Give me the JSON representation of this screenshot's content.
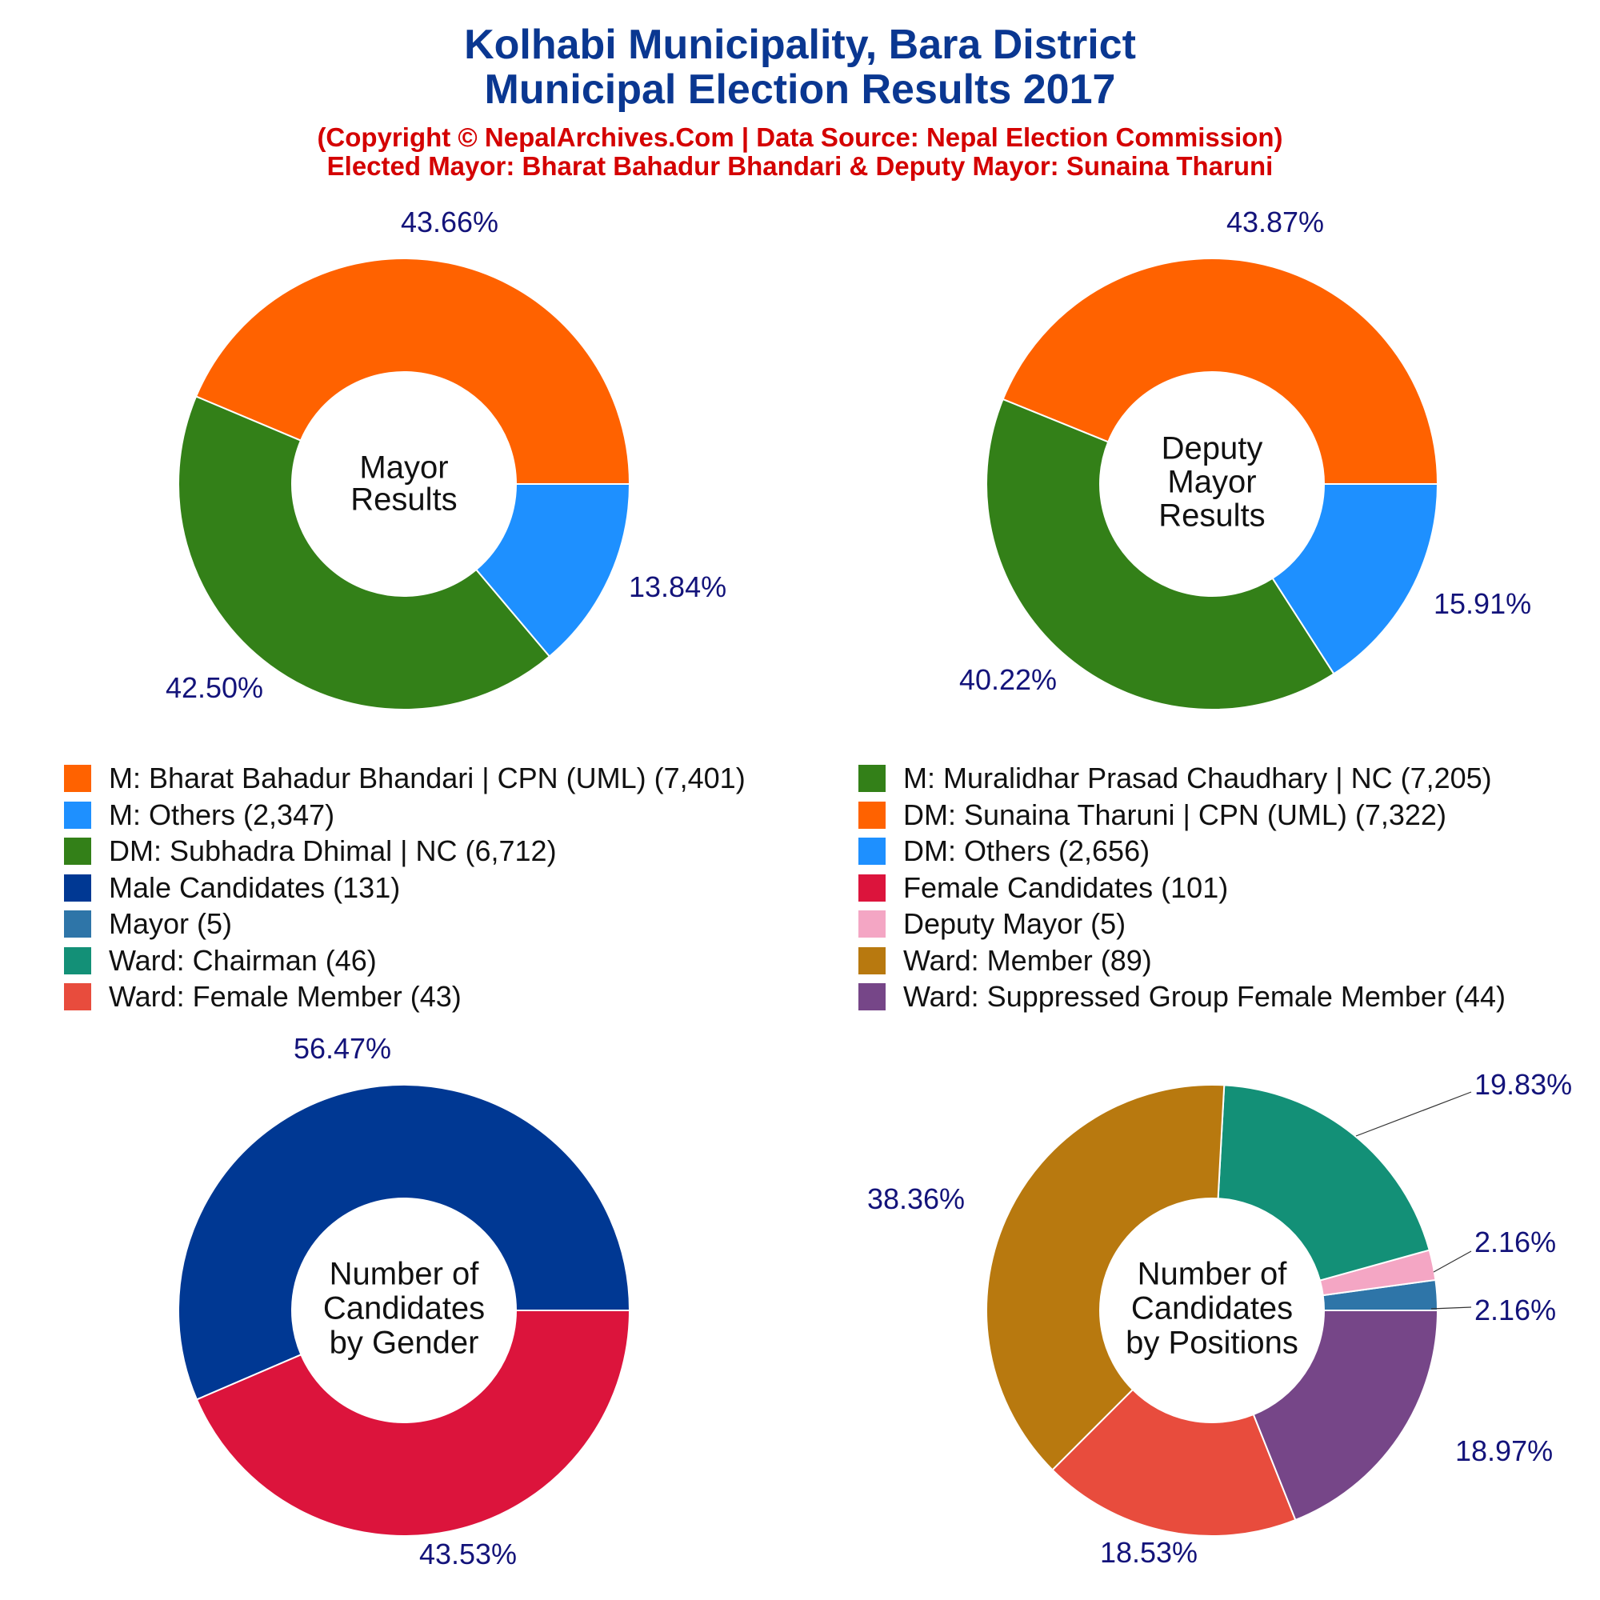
{
  "header": {
    "title_line1": "Kolhabi Municipality, Bara District",
    "title_line2": "Municipal Election Results 2017",
    "sub_line1": "(Copyright © NepalArchives.Com | Data Source: Nepal Election Commission)",
    "sub_line2": "Elected Mayor: Bharat Bahadur Bhandari & Deputy Mayor: Sunaina Tharuni"
  },
  "legend": [
    {
      "label": "M: Bharat Bahadur Bhandari | CPN (UML) (7,401)",
      "color": "#ff6200"
    },
    {
      "label": "M: Muralidhar Prasad Chaudhary | NC (7,205)",
      "color": "#338018"
    },
    {
      "label": "M: Others (2,347)",
      "color": "#1e90ff"
    },
    {
      "label": "DM: Sunaina Tharuni | CPN (UML) (7,322)",
      "color": "#ff6200"
    },
    {
      "label": "DM: Subhadra Dhimal | NC (6,712)",
      "color": "#338018"
    },
    {
      "label": "DM: Others (2,656)",
      "color": "#1e90ff"
    },
    {
      "label": "Male Candidates (131)",
      "color": "#003893"
    },
    {
      "label": "Female Candidates (101)",
      "color": "#dc143c"
    },
    {
      "label": "Mayor (5)",
      "color": "#2e75a8"
    },
    {
      "label": "Deputy Mayor (5)",
      "color": "#f4a6c4"
    },
    {
      "label": "Ward: Chairman (46)",
      "color": "#139077"
    },
    {
      "label": "Ward: Member (89)",
      "color": "#b8790f"
    },
    {
      "label": "Ward: Female Member (43)",
      "color": "#e84c3d"
    },
    {
      "label": "Ward: Suppressed Group Female Member (44)",
      "color": "#764688"
    }
  ],
  "chart_data": [
    {
      "type": "pie",
      "center_label": [
        "Mayor",
        "Results"
      ],
      "slices": [
        {
          "value": 7401,
          "label": "43.66%",
          "color": "#ff6200"
        },
        {
          "value": 7205,
          "label": "42.50%",
          "color": "#338018"
        },
        {
          "value": 2347,
          "label": "13.84%",
          "color": "#1e90ff"
        }
      ]
    },
    {
      "type": "pie",
      "center_label": [
        "Deputy",
        "Mayor",
        "Results"
      ],
      "slices": [
        {
          "value": 7322,
          "label": "43.87%",
          "color": "#ff6200"
        },
        {
          "value": 6712,
          "label": "40.22%",
          "color": "#338018"
        },
        {
          "value": 2656,
          "label": "15.91%",
          "color": "#1e90ff"
        }
      ]
    },
    {
      "type": "pie",
      "center_label": [
        "Number of",
        "Candidates",
        "by Gender"
      ],
      "slices": [
        {
          "value": 131,
          "label": "56.47%",
          "color": "#003893"
        },
        {
          "value": 101,
          "label": "43.53%",
          "color": "#dc143c"
        }
      ]
    },
    {
      "type": "pie",
      "center_label": [
        "Number of",
        "Candidates",
        "by Positions"
      ],
      "slices": [
        {
          "value": 5,
          "label": "2.16%",
          "color": "#2e75a8"
        },
        {
          "value": 5,
          "label": "2.16%",
          "color": "#f4a6c4"
        },
        {
          "value": 46,
          "label": "19.83%",
          "color": "#139077"
        },
        {
          "value": 89,
          "label": "38.36%",
          "color": "#b8790f"
        },
        {
          "value": 43,
          "label": "18.53%",
          "color": "#e84c3d"
        },
        {
          "value": 44,
          "label": "18.97%",
          "color": "#764688"
        }
      ]
    }
  ]
}
